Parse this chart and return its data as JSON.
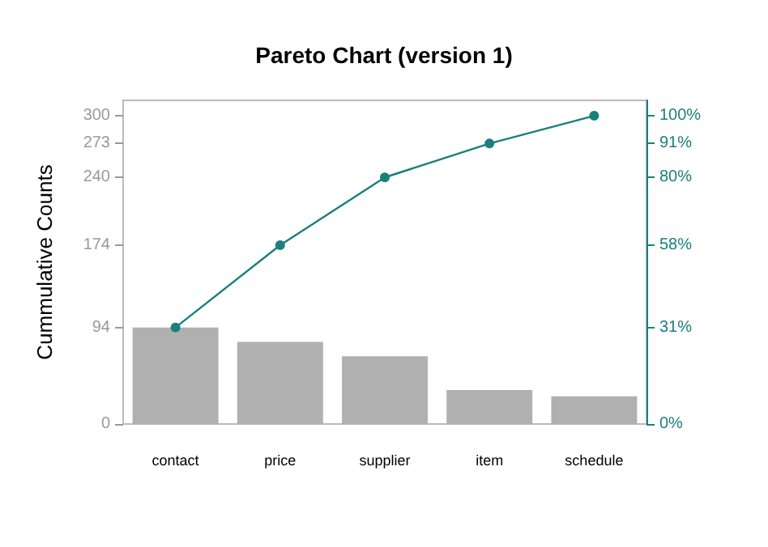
{
  "chart_data": {
    "type": "bar",
    "title": "Pareto Chart (version 1)",
    "ylabel": "Cummulative Counts",
    "categories": [
      "contact",
      "price",
      "supplier",
      "item",
      "schedule"
    ],
    "series": [
      {
        "color": "#b0b0b0",
        "values": [
          94,
          80,
          66,
          33,
          27
        ]
      },
      {
        "type": "line",
        "color": "#1a7f7f",
        "values": [
          94,
          174,
          240,
          273,
          300
        ],
        "marker": "circle",
        "line_style": "solid"
      }
    ],
    "ylim": [
      0,
      315
    ],
    "yticks": [
      0,
      94,
      174,
      240,
      273,
      300
    ],
    "y2lim": [
      0,
      105
    ],
    "y2ticks": [
      {
        "value": 0,
        "label": "0%"
      },
      {
        "value": 31.3,
        "label": "31%"
      },
      {
        "value": 58,
        "label": "58%"
      },
      {
        "value": 80,
        "label": "80%"
      },
      {
        "value": 91,
        "label": "91%"
      },
      {
        "value": 100,
        "label": "100%"
      }
    ],
    "grid": false
  }
}
